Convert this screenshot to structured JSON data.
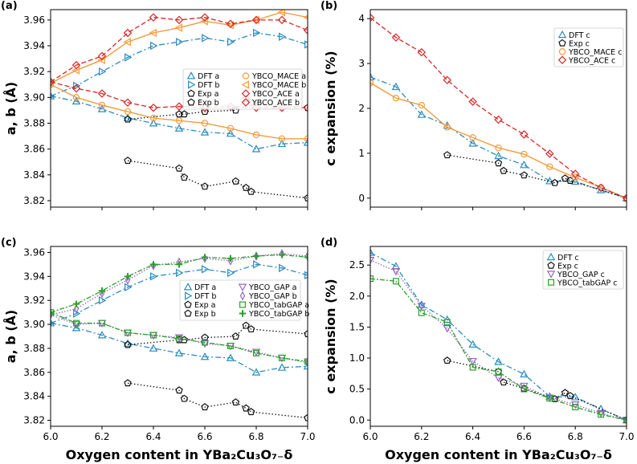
{
  "styles": {
    "DFT": {
      "color": "#2b8cbe",
      "marker": "triangle-up",
      "dash": "7,3,2,3",
      "width": 1.3
    },
    "DFTb": {
      "color": "#2b8cbe",
      "marker": "triangle-right",
      "dash": "7,3,2,3",
      "width": 1.3
    },
    "Exp": {
      "color": "#111111",
      "marker": "pentagon",
      "dash": "1.5,2.5",
      "width": 1.3
    },
    "MACEa": {
      "color": "#f39c3d",
      "marker": "circle",
      "dash": "",
      "width": 1.4
    },
    "MACEb": {
      "color": "#f39c3d",
      "marker": "triangle-left",
      "dash": "",
      "width": 1.4
    },
    "ACE": {
      "color": "#d62728",
      "marker": "diamond",
      "dash": "6,3",
      "width": 1.3
    },
    "GAP": {
      "color": "#9467bd",
      "marker": "triangle-down",
      "dash": "1.5,2",
      "width": 1.3
    },
    "GAPb": {
      "color": "#9467bd",
      "marker": "diamond-thin",
      "dash": "1.5,2",
      "width": 1.3
    },
    "tabGAP": {
      "color": "#2ca02c",
      "marker": "square",
      "dash": "6,2,2,2",
      "width": 1.3
    },
    "tabGAPb": {
      "color": "#2ca02c",
      "marker": "plus",
      "dash": "6,2,2,2",
      "width": 1.3
    }
  },
  "chart_data": [
    {
      "id": "a",
      "panel_label": "(a)",
      "type": "line",
      "ylabel": "a, b (Å)",
      "xlabel": "",
      "xlim": [
        6.0,
        7.0
      ],
      "ylim": [
        3.815,
        3.968
      ],
      "xticks": [
        "6.0",
        "6.2",
        "6.4",
        "6.6",
        "6.8",
        "7.0"
      ],
      "show_xticklabels": false,
      "yticks": [
        "3.82",
        "3.84",
        "3.86",
        "3.88",
        "3.90",
        "3.92",
        "3.94",
        "3.96"
      ],
      "legend": {
        "position": "center-right",
        "columns": 2
      },
      "series": [
        {
          "name": "DFT a",
          "style": "DFT",
          "x": [
            6.0,
            6.1,
            6.2,
            6.3,
            6.4,
            6.5,
            6.6,
            6.7,
            6.8,
            6.9,
            7.0
          ],
          "y": [
            3.901,
            3.897,
            3.891,
            3.884,
            3.88,
            3.876,
            3.873,
            3.872,
            3.86,
            3.864,
            3.865
          ]
        },
        {
          "name": "DFT b",
          "style": "DFTb",
          "x": [
            6.0,
            6.1,
            6.2,
            6.3,
            6.4,
            6.5,
            6.6,
            6.7,
            6.8,
            6.9,
            7.0
          ],
          "y": [
            3.901,
            3.909,
            3.92,
            3.931,
            3.94,
            3.943,
            3.946,
            3.943,
            3.95,
            3.947,
            3.941
          ]
        },
        {
          "name": "Exp a",
          "style": "Exp",
          "x": [
            6.3,
            6.5,
            6.52,
            6.6,
            6.72,
            6.76,
            6.78,
            7.0
          ],
          "y": [
            3.851,
            3.845,
            3.838,
            3.831,
            3.835,
            3.83,
            3.827,
            3.822
          ]
        },
        {
          "name": "Exp b",
          "style": "Exp",
          "x": [
            6.3,
            6.5,
            6.52,
            6.6,
            6.72,
            6.76,
            6.78,
            7.0
          ],
          "y": [
            3.883,
            3.887,
            3.887,
            3.889,
            3.89,
            3.899,
            3.896,
            3.892
          ]
        },
        {
          "name": "YBCO_MACE a",
          "style": "MACEa",
          "x": [
            6.0,
            6.1,
            6.2,
            6.3,
            6.4,
            6.5,
            6.6,
            6.7,
            6.8,
            6.9,
            7.0
          ],
          "y": [
            3.91,
            3.9,
            3.894,
            3.889,
            3.884,
            3.882,
            3.88,
            3.876,
            3.871,
            3.868,
            3.868
          ]
        },
        {
          "name": "YBCO_MACE b",
          "style": "MACEb",
          "x": [
            6.0,
            6.1,
            6.2,
            6.3,
            6.4,
            6.5,
            6.6,
            6.7,
            6.8,
            6.9,
            7.0
          ],
          "y": [
            3.911,
            3.921,
            3.929,
            3.943,
            3.95,
            3.954,
            3.959,
            3.956,
            3.96,
            3.966,
            3.962
          ]
        },
        {
          "name": "YBCO_ACE a",
          "style": "ACE",
          "x": [
            6.0,
            6.1,
            6.2,
            6.3,
            6.4,
            6.5,
            6.6,
            6.7,
            6.8,
            6.9,
            7.0
          ],
          "y": [
            3.912,
            3.907,
            3.903,
            3.896,
            3.892,
            3.893,
            3.892,
            3.893,
            3.892,
            3.892,
            3.892
          ]
        },
        {
          "name": "YBCO_ACE b",
          "style": "ACE",
          "x": [
            6.0,
            6.1,
            6.2,
            6.3,
            6.4,
            6.5,
            6.6,
            6.7,
            6.8,
            6.9,
            7.0
          ],
          "y": [
            3.912,
            3.925,
            3.932,
            3.95,
            3.962,
            3.96,
            3.962,
            3.957,
            3.96,
            3.96,
            3.952
          ]
        }
      ]
    },
    {
      "id": "b",
      "panel_label": "(b)",
      "type": "line",
      "ylabel": "c expansion (%)",
      "xlabel": "",
      "xlim": [
        6.0,
        7.0
      ],
      "ylim": [
        -0.2,
        4.2
      ],
      "xticks": [
        "6.0",
        "6.2",
        "6.4",
        "6.6",
        "6.8",
        "7.0"
      ],
      "show_xticklabels": false,
      "yticks": [
        "0",
        "1",
        "2",
        "3",
        "4"
      ],
      "legend": {
        "position": "top-right",
        "columns": 1
      },
      "series": [
        {
          "name": "DFT c",
          "style": "DFT",
          "x": [
            6.0,
            6.1,
            6.2,
            6.3,
            6.4,
            6.5,
            6.6,
            6.7,
            6.8,
            6.9,
            7.0
          ],
          "y": [
            2.7,
            2.48,
            1.86,
            1.62,
            1.22,
            0.94,
            0.74,
            0.38,
            0.37,
            0.18,
            0.0
          ]
        },
        {
          "name": "Exp c",
          "style": "Exp",
          "x": [
            6.3,
            6.5,
            6.52,
            6.6,
            6.72,
            6.76,
            6.78,
            7.0
          ],
          "y": [
            0.96,
            0.78,
            0.61,
            0.51,
            0.34,
            0.44,
            0.39,
            0.0
          ]
        },
        {
          "name": "YBCO_MACE c",
          "style": "MACEa",
          "x": [
            6.0,
            6.1,
            6.2,
            6.3,
            6.4,
            6.5,
            6.6,
            6.7,
            6.8,
            6.9,
            7.0
          ],
          "y": [
            2.57,
            2.23,
            2.07,
            1.58,
            1.35,
            1.12,
            0.98,
            0.7,
            0.46,
            0.24,
            0.0
          ]
        },
        {
          "name": "YBCO_ACE c",
          "style": "ACE",
          "x": [
            6.0,
            6.1,
            6.2,
            6.3,
            6.4,
            6.5,
            6.6,
            6.7,
            6.8,
            6.9,
            7.0
          ],
          "y": [
            4.02,
            3.58,
            3.25,
            2.63,
            2.15,
            1.75,
            1.42,
            0.99,
            0.54,
            0.23,
            0.0
          ]
        }
      ]
    },
    {
      "id": "c",
      "panel_label": "(c)",
      "type": "line",
      "ylabel": "a, b (Å)",
      "xlabel": "Oxygen content in YBa₂Cu₃O₇₋δ",
      "xlim": [
        6.0,
        7.0
      ],
      "ylim": [
        3.815,
        3.965
      ],
      "xticks": [
        "6.0",
        "6.2",
        "6.4",
        "6.6",
        "6.8",
        "7.0"
      ],
      "show_xticklabels": true,
      "yticks": [
        "3.82",
        "3.84",
        "3.86",
        "3.88",
        "3.90",
        "3.92",
        "3.94",
        "3.96"
      ],
      "legend": {
        "position": "center-right",
        "columns": 2
      },
      "series": [
        {
          "name": "DFT a",
          "style": "DFT",
          "x": [
            6.0,
            6.1,
            6.2,
            6.3,
            6.4,
            6.5,
            6.6,
            6.7,
            6.8,
            6.9,
            7.0
          ],
          "y": [
            3.901,
            3.897,
            3.891,
            3.884,
            3.88,
            3.876,
            3.873,
            3.872,
            3.86,
            3.864,
            3.865
          ]
        },
        {
          "name": "DFT b",
          "style": "DFTb",
          "x": [
            6.0,
            6.1,
            6.2,
            6.3,
            6.4,
            6.5,
            6.6,
            6.7,
            6.8,
            6.9,
            7.0
          ],
          "y": [
            3.901,
            3.909,
            3.92,
            3.931,
            3.94,
            3.943,
            3.946,
            3.943,
            3.95,
            3.947,
            3.941
          ]
        },
        {
          "name": "Exp a",
          "style": "Exp",
          "x": [
            6.3,
            6.5,
            6.52,
            6.6,
            6.72,
            6.76,
            6.78,
            7.0
          ],
          "y": [
            3.851,
            3.845,
            3.838,
            3.831,
            3.835,
            3.83,
            3.827,
            3.822
          ]
        },
        {
          "name": "Exp b",
          "style": "Exp",
          "x": [
            6.3,
            6.5,
            6.52,
            6.6,
            6.72,
            6.76,
            6.78,
            7.0
          ],
          "y": [
            3.883,
            3.887,
            3.887,
            3.889,
            3.89,
            3.899,
            3.896,
            3.892
          ]
        },
        {
          "name": "YBCO_GAP a",
          "style": "GAP",
          "x": [
            6.0,
            6.1,
            6.2,
            6.3,
            6.4,
            6.5,
            6.6,
            6.7,
            6.8,
            6.9,
            7.0
          ],
          "y": [
            3.908,
            3.9,
            3.901,
            3.893,
            3.891,
            3.889,
            3.884,
            3.882,
            3.877,
            3.872,
            3.868
          ]
        },
        {
          "name": "YBCO_GAP b",
          "style": "GAPb",
          "x": [
            6.0,
            6.1,
            6.2,
            6.3,
            6.4,
            6.5,
            6.6,
            6.7,
            6.8,
            6.9,
            7.0
          ],
          "y": [
            3.908,
            3.913,
            3.926,
            3.937,
            3.949,
            3.952,
            3.955,
            3.953,
            3.957,
            3.959,
            3.957
          ]
        },
        {
          "name": "YBCO_tabGAP a",
          "style": "tabGAP",
          "x": [
            6.0,
            6.1,
            6.2,
            6.3,
            6.4,
            6.5,
            6.6,
            6.7,
            6.8,
            6.9,
            7.0
          ],
          "y": [
            3.91,
            3.901,
            3.901,
            3.893,
            3.891,
            3.888,
            3.885,
            3.882,
            3.876,
            3.872,
            3.869
          ]
        },
        {
          "name": "YBCO_tabGAP b",
          "style": "tabGAPb",
          "x": [
            6.0,
            6.1,
            6.2,
            6.3,
            6.4,
            6.5,
            6.6,
            6.7,
            6.8,
            6.9,
            7.0
          ],
          "y": [
            3.91,
            3.917,
            3.928,
            3.94,
            3.95,
            3.95,
            3.956,
            3.955,
            3.957,
            3.958,
            3.956
          ]
        }
      ]
    },
    {
      "id": "d",
      "panel_label": "(d)",
      "type": "line",
      "ylabel": "c expansion (%)",
      "xlabel": "Oxygen content in YBa₂Cu₃O₇₋δ",
      "xlim": [
        6.0,
        7.0
      ],
      "ylim": [
        -0.1,
        2.8
      ],
      "xticks": [
        "6.0",
        "6.2",
        "6.4",
        "6.6",
        "6.8",
        "7.0"
      ],
      "show_xticklabels": true,
      "yticks": [
        "0.0",
        "0.5",
        "1.0",
        "1.5",
        "2.0",
        "2.5"
      ],
      "legend": {
        "position": "top-right",
        "columns": 1
      },
      "series": [
        {
          "name": "DFT c",
          "style": "DFT",
          "x": [
            6.0,
            6.1,
            6.2,
            6.3,
            6.4,
            6.5,
            6.6,
            6.7,
            6.8,
            6.9,
            7.0
          ],
          "y": [
            2.7,
            2.48,
            1.86,
            1.62,
            1.22,
            0.94,
            0.74,
            0.38,
            0.37,
            0.18,
            0.0
          ]
        },
        {
          "name": "Exp c",
          "style": "Exp",
          "x": [
            6.3,
            6.5,
            6.52,
            6.6,
            6.72,
            6.76,
            6.78,
            7.0
          ],
          "y": [
            0.96,
            0.78,
            0.61,
            0.51,
            0.34,
            0.44,
            0.39,
            0.0
          ]
        },
        {
          "name": "YBCO_GAP c",
          "style": "GAP",
          "x": [
            6.0,
            6.1,
            6.2,
            6.3,
            6.4,
            6.5,
            6.6,
            6.7,
            6.8,
            6.9,
            7.0
          ],
          "y": [
            2.58,
            2.4,
            1.84,
            1.48,
            0.95,
            0.68,
            0.55,
            0.36,
            0.25,
            0.11,
            0.0
          ]
        },
        {
          "name": "YBCO_tabGAP c",
          "style": "tabGAP",
          "x": [
            6.0,
            6.1,
            6.2,
            6.3,
            6.4,
            6.5,
            6.6,
            6.7,
            6.8,
            6.9,
            7.0
          ],
          "y": [
            2.28,
            2.24,
            1.73,
            1.58,
            0.85,
            0.78,
            0.5,
            0.35,
            0.21,
            0.09,
            0.0
          ]
        }
      ]
    }
  ]
}
